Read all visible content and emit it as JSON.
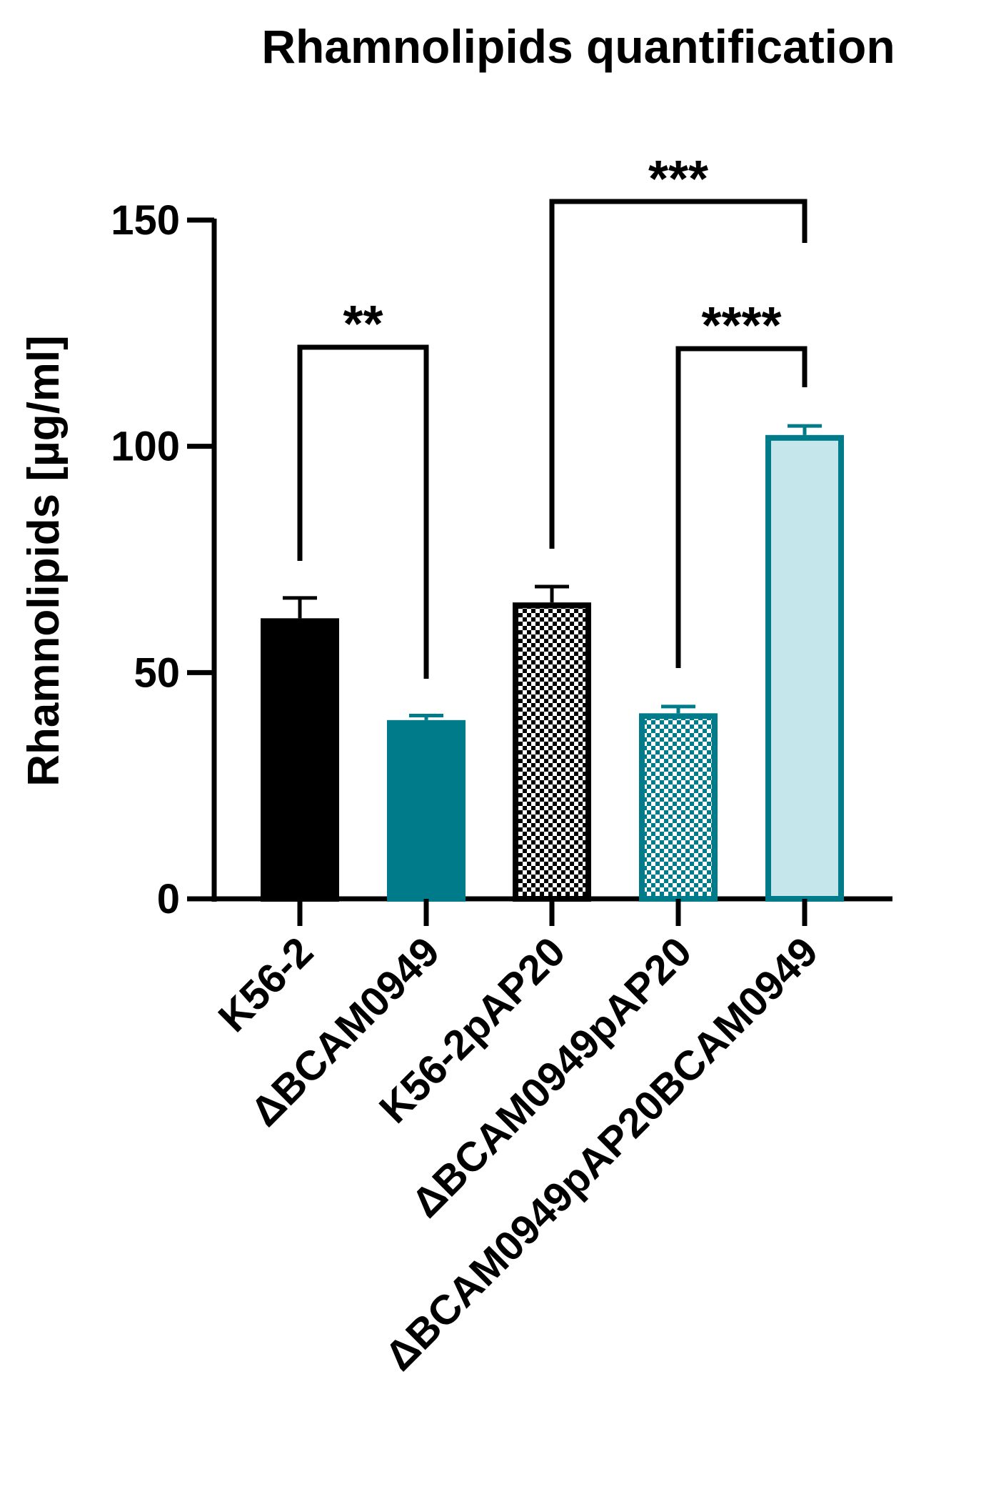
{
  "chart_data": {
    "type": "bar",
    "title": "Rhamnolipids quantification",
    "xlabel": "",
    "ylabel": "Rhamnolipids [µg/ml]",
    "ylim": [
      0,
      150
    ],
    "yticks": [
      0,
      50,
      100,
      150
    ],
    "grid": false,
    "categories": [
      "K56-2",
      "ΔBCAM0949",
      "K56-2pAP20",
      "ΔBCAM0949pAP20",
      "ΔBCAM0949pAP20BCAM0949"
    ],
    "values": [
      62,
      39.5,
      65.5,
      41,
      102.5
    ],
    "errors": [
      4.5,
      1,
      3.5,
      1.5,
      2
    ],
    "bar_styles": [
      {
        "fill": "#000000",
        "stroke": "#000000",
        "pattern": "solid"
      },
      {
        "fill": "#007b8a",
        "stroke": "#007b8a",
        "pattern": "solid"
      },
      {
        "fill": "#000000",
        "stroke": "#000000",
        "pattern": "checker"
      },
      {
        "fill": "#007b8a",
        "stroke": "#007b8a",
        "pattern": "checker"
      },
      {
        "fill": "#c5e6ea",
        "stroke": "#007b8a",
        "pattern": "solid"
      }
    ],
    "significance": [
      {
        "from": 0,
        "to": 1,
        "label": "**"
      },
      {
        "from": 2,
        "to": 4,
        "label": "***"
      },
      {
        "from": 3,
        "to": 4,
        "label": "****"
      }
    ]
  }
}
